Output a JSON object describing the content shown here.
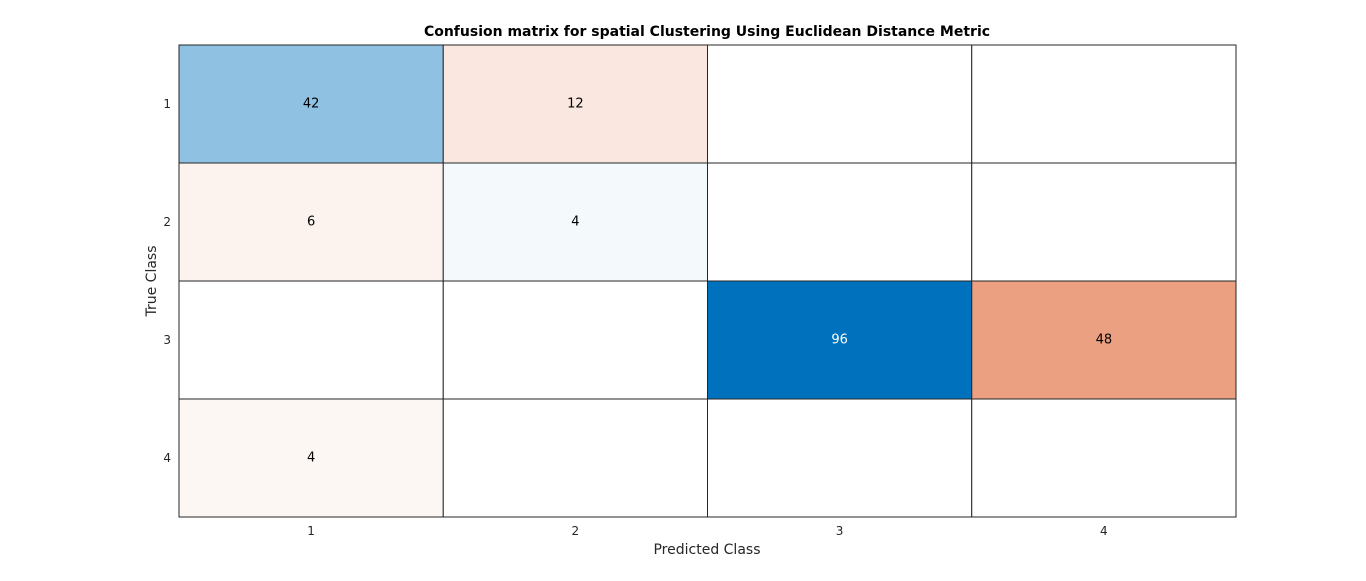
{
  "chart_data": {
    "type": "heatmap",
    "title": "Confusion matrix for spatial Clustering Using Euclidean Distance Metric",
    "xlabel": "Predicted Class",
    "ylabel": "True Class",
    "x_categories": [
      "1",
      "2",
      "3",
      "4"
    ],
    "y_categories": [
      "1",
      "2",
      "3",
      "4"
    ],
    "values": [
      [
        42,
        12,
        null,
        null
      ],
      [
        6,
        4,
        null,
        null
      ],
      [
        null,
        null,
        96,
        48
      ],
      [
        4,
        null,
        null,
        null
      ]
    ],
    "colormap": {
      "correct_color": "#0072BD",
      "incorrect_color": "#D95319",
      "empty_color": "#FFFFFF",
      "grid_color": "#262626"
    }
  }
}
